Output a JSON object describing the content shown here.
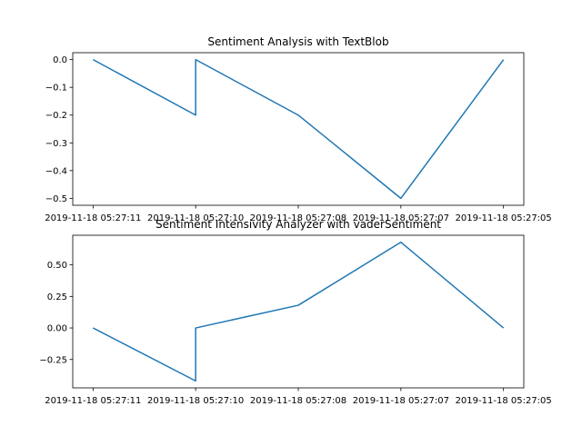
{
  "chart_data": [
    {
      "type": "line",
      "title": "Sentiment Analysis with TextBlob",
      "x": [
        "2019-11-18 05:27:11",
        "2019-11-18 05:27:10",
        "2019-11-18 05:27:10",
        "2019-11-18 05:27:08",
        "2019-11-18 05:27:07",
        "2019-11-18 05:27:05"
      ],
      "x_labels": [
        "2019-11-18 05:27:11",
        "2019-11-18 05:27:10",
        "2019-11-18 05:27:08",
        "2019-11-18 05:27:07",
        "2019-11-18 05:27:05"
      ],
      "series": [
        {
          "values": [
            0.0,
            -0.2,
            0.0,
            -0.2,
            -0.5,
            0.0
          ],
          "color": "#1f77b4"
        }
      ],
      "yticks": [
        0.0,
        -0.1,
        -0.2,
        -0.3,
        -0.4,
        -0.5
      ],
      "ytick_labels": [
        "0.0",
        "−0.1",
        "−0.2",
        "−0.3",
        "−0.4",
        "−0.5"
      ],
      "ylim": [
        -0.525,
        0.025
      ],
      "grid": false
    },
    {
      "type": "line",
      "title": "Sentiment Intensivity Analyzer with vaderSentiment",
      "x": [
        "2019-11-18 05:27:11",
        "2019-11-18 05:27:10",
        "2019-11-18 05:27:10",
        "2019-11-18 05:27:08",
        "2019-11-18 05:27:07",
        "2019-11-18 05:27:05"
      ],
      "x_labels": [
        "2019-11-18 05:27:11",
        "2019-11-18 05:27:10",
        "2019-11-18 05:27:08",
        "2019-11-18 05:27:07",
        "2019-11-18 05:27:05"
      ],
      "series": [
        {
          "values": [
            0.0,
            -0.42,
            0.0,
            0.18,
            0.68,
            0.0
          ],
          "color": "#1f77b4"
        }
      ],
      "yticks": [
        0.5,
        0.25,
        0.0,
        -0.25
      ],
      "ytick_labels": [
        "0.50",
        "0.25",
        "0.00",
        "−0.25"
      ],
      "ylim": [
        -0.475,
        0.735
      ],
      "grid": false
    }
  ]
}
